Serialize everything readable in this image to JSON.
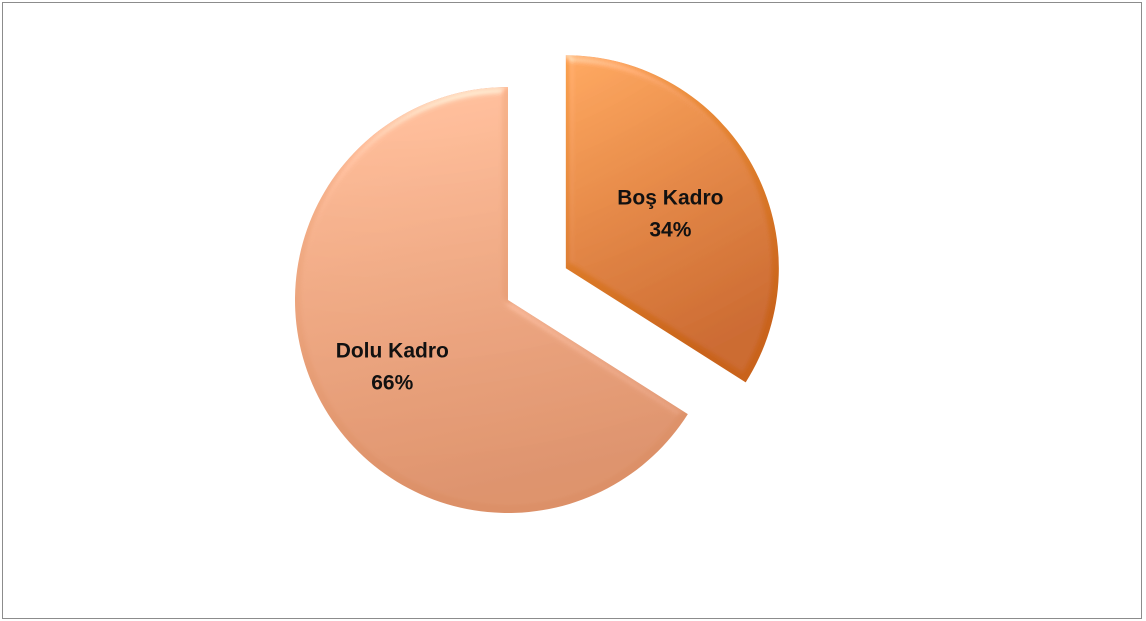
{
  "chart_data": {
    "type": "pie",
    "title": "",
    "slices": [
      {
        "label": "Boş Kadro",
        "value": 34,
        "value_label": "34%",
        "color": "#e8802a",
        "exploded": true
      },
      {
        "label": "Dolu Kadro",
        "value": 66,
        "value_label": "66%",
        "color": "#f3a883",
        "exploded": false
      }
    ],
    "legend": "none",
    "start_angle": "12 o'clock, clockwise",
    "style": "3D bevel, one slice exploded"
  }
}
